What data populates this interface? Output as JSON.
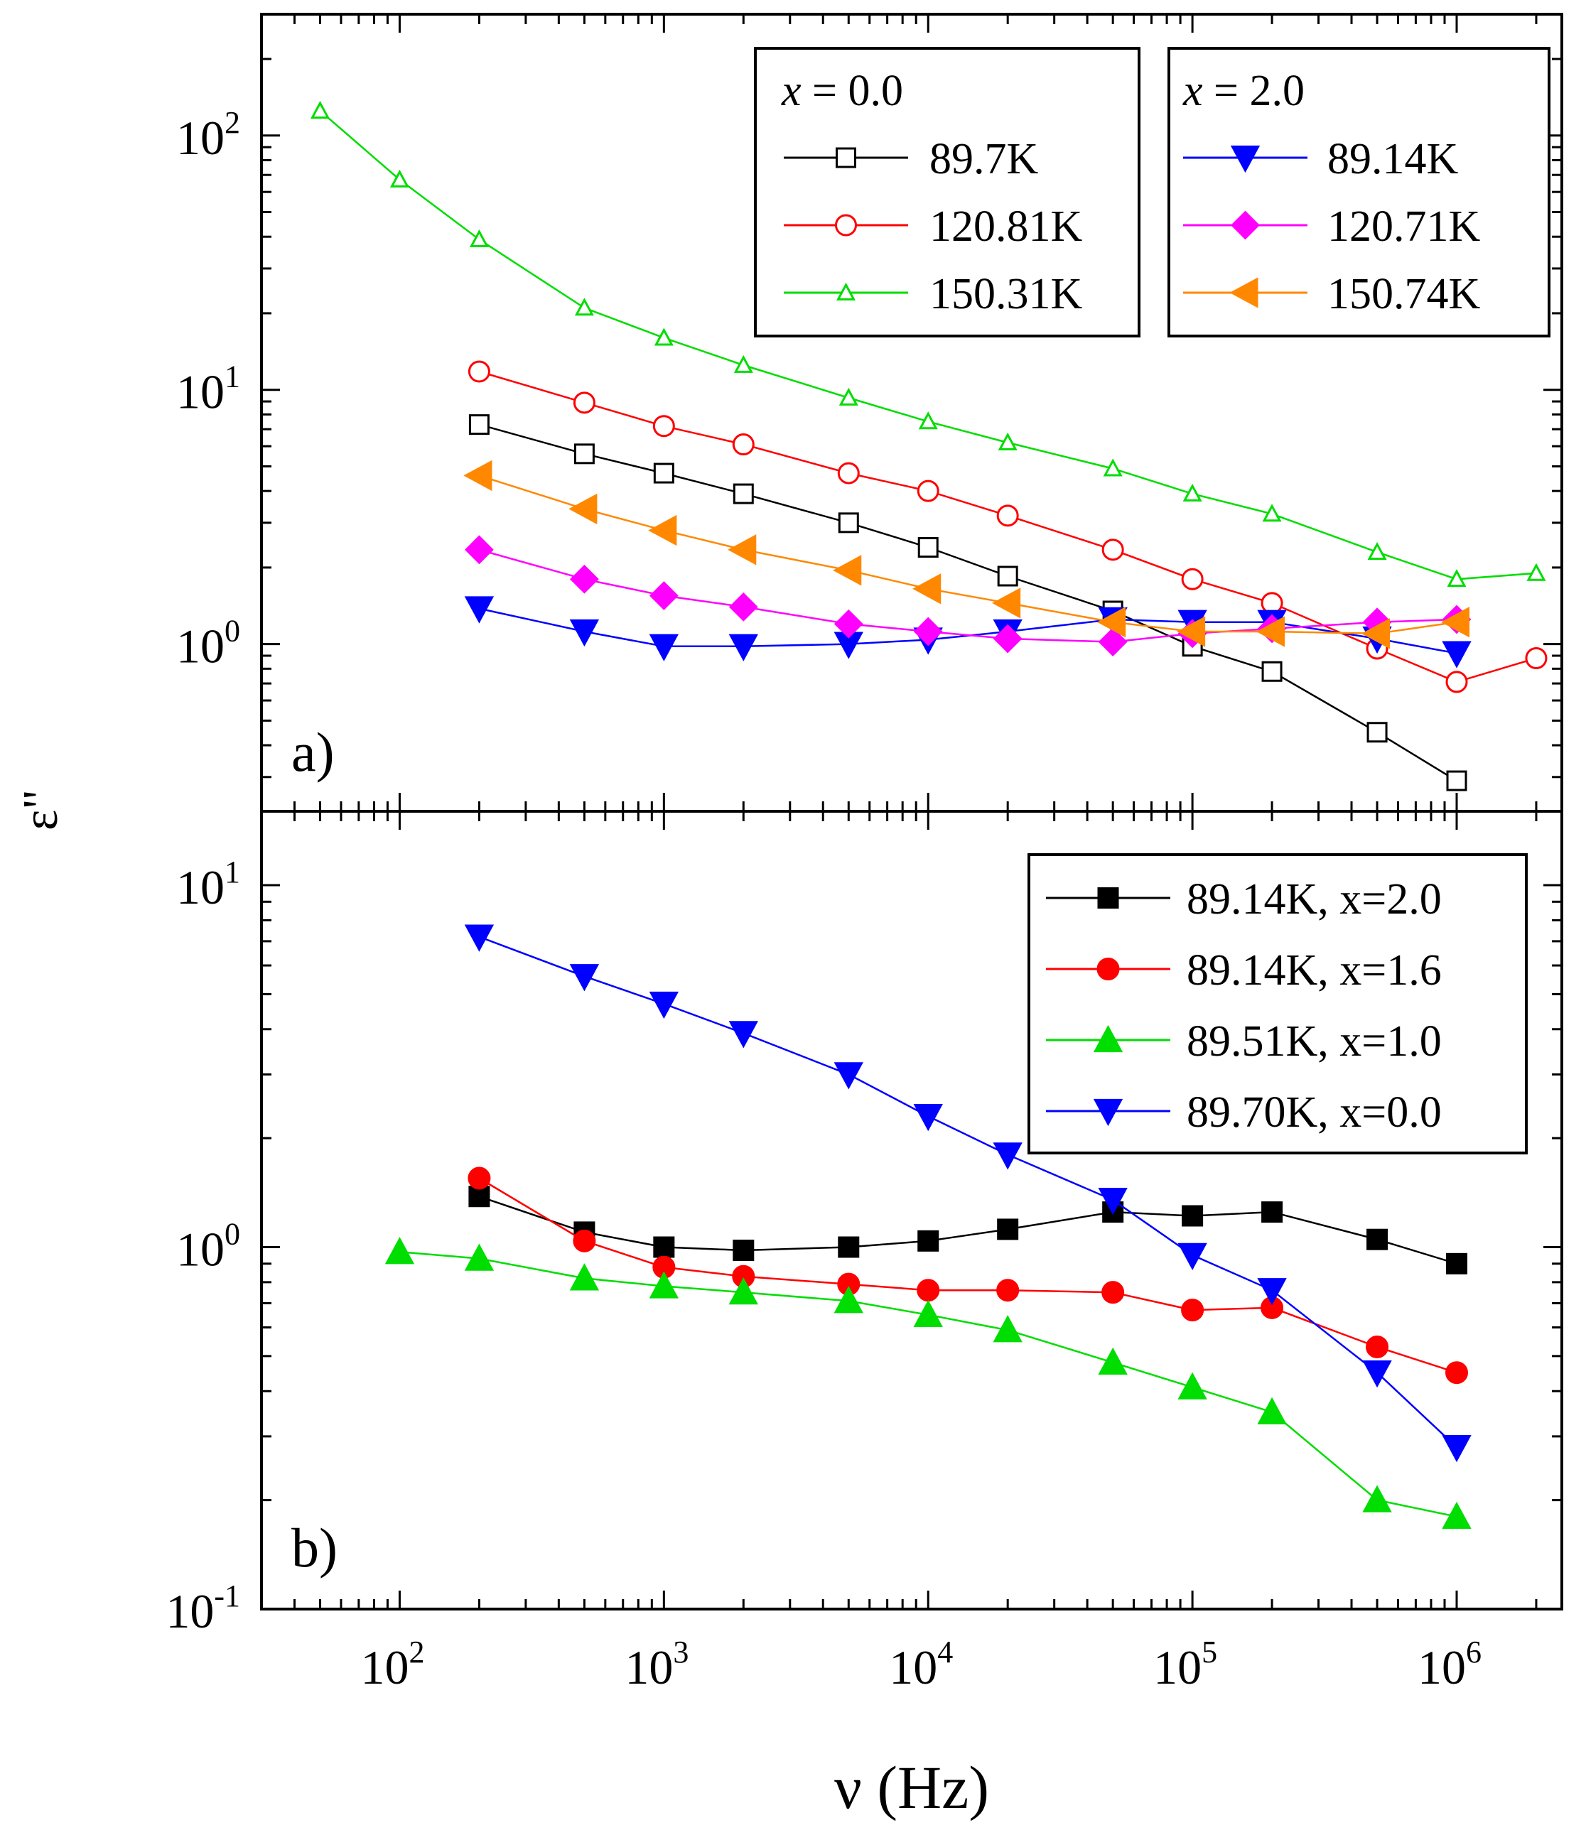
{
  "chart_data": [
    {
      "panel": "a",
      "panel_label": "a)",
      "type": "line",
      "x_scale": "log",
      "y_scale": "log",
      "xlim": [
        30,
        2500000
      ],
      "ylim": [
        0.22,
        300
      ],
      "ylabel": "ε\"",
      "y_ticks": [
        {
          "value": 1,
          "base": "10",
          "exp": "0"
        },
        {
          "value": 10,
          "base": "10",
          "exp": "1"
        },
        {
          "value": 100,
          "base": "10",
          "exp": "2"
        }
      ],
      "legends": [
        {
          "title_var": "x",
          "title_rest": " = 0.0",
          "entries": [
            "89.7K",
            "120.81K",
            "150.31K"
          ]
        },
        {
          "title_var": "x",
          "title_rest": " = 2.0",
          "entries": [
            "89.14K",
            "120.71K",
            "150.74K"
          ]
        }
      ],
      "series": [
        {
          "name": "89.7K",
          "color": "#000000",
          "marker": "square-open",
          "x": [
            200,
            500,
            1000,
            2000,
            5000,
            10000,
            20000,
            50000,
            100000,
            200000,
            500000,
            1000000
          ],
          "y": [
            7.3,
            5.6,
            4.7,
            3.9,
            3.0,
            2.4,
            1.85,
            1.35,
            0.98,
            0.78,
            0.45,
            0.29
          ]
        },
        {
          "name": "120.81K",
          "color": "#ff0000",
          "marker": "circle-open",
          "x": [
            200,
            500,
            1000,
            2000,
            5000,
            10000,
            20000,
            50000,
            100000,
            200000,
            500000,
            1000000,
            2000000
          ],
          "y": [
            11.8,
            8.9,
            7.2,
            6.1,
            4.7,
            4.0,
            3.2,
            2.35,
            1.8,
            1.45,
            0.96,
            0.71,
            0.88
          ]
        },
        {
          "name": "150.31K",
          "color": "#00dd00",
          "marker": "triangle-up-open",
          "x": [
            50,
            100,
            200,
            500,
            1000,
            2000,
            5000,
            10000,
            20000,
            50000,
            100000,
            200000,
            500000,
            1000000,
            2000000
          ],
          "y": [
            125,
            67,
            39,
            21,
            16,
            12.5,
            9.3,
            7.5,
            6.2,
            4.9,
            3.9,
            3.25,
            2.3,
            1.8,
            1.9
          ]
        },
        {
          "name": "89.14K",
          "color": "#0000ff",
          "marker": "triangle-down-filled",
          "x": [
            200,
            500,
            1000,
            2000,
            5000,
            10000,
            20000,
            50000,
            100000,
            200000,
            500000,
            1000000
          ],
          "y": [
            1.38,
            1.12,
            0.98,
            0.98,
            1.0,
            1.04,
            1.12,
            1.25,
            1.22,
            1.22,
            1.05,
            0.92
          ]
        },
        {
          "name": "120.71K",
          "color": "#ff00ff",
          "marker": "diamond-filled",
          "x": [
            200,
            500,
            1000,
            2000,
            5000,
            10000,
            20000,
            50000,
            100000,
            200000,
            500000,
            1000000
          ],
          "y": [
            2.35,
            1.8,
            1.55,
            1.4,
            1.2,
            1.12,
            1.05,
            1.02,
            1.1,
            1.15,
            1.22,
            1.25
          ]
        },
        {
          "name": "150.74K",
          "color": "#ff8800",
          "marker": "triangle-left-filled",
          "x": [
            200,
            500,
            1000,
            2000,
            5000,
            10000,
            20000,
            50000,
            100000,
            200000,
            500000,
            1000000
          ],
          "y": [
            4.6,
            3.4,
            2.8,
            2.35,
            1.95,
            1.65,
            1.45,
            1.22,
            1.12,
            1.12,
            1.1,
            1.22
          ]
        }
      ]
    },
    {
      "panel": "b",
      "panel_label": "b)",
      "type": "line",
      "x_scale": "log",
      "y_scale": "log",
      "xlim": [
        30,
        2500000
      ],
      "ylim": [
        0.1,
        16
      ],
      "xlabel": "ν (Hz)",
      "x_ticks": [
        {
          "value": 100,
          "base": "10",
          "exp": "2"
        },
        {
          "value": 1000,
          "base": "10",
          "exp": "3"
        },
        {
          "value": 10000,
          "base": "10",
          "exp": "4"
        },
        {
          "value": 100000,
          "base": "10",
          "exp": "5"
        },
        {
          "value": 1000000,
          "base": "10",
          "exp": "6"
        }
      ],
      "y_ticks": [
        {
          "value": 0.1,
          "base": "10",
          "exp": "-1"
        },
        {
          "value": 1,
          "base": "10",
          "exp": "0"
        },
        {
          "value": 10,
          "base": "10",
          "exp": "1"
        }
      ],
      "legends": [
        {
          "entries": [
            "89.14K, x=2.0",
            "89.14K, x=1.6",
            "89.51K, x=1.0",
            "89.70K, x=0.0"
          ]
        }
      ],
      "series": [
        {
          "name": "89.14K, x=2.0",
          "color": "#000000",
          "marker": "square-filled",
          "x": [
            200,
            500,
            1000,
            2000,
            5000,
            10000,
            20000,
            50000,
            100000,
            200000,
            500000,
            1000000
          ],
          "y": [
            1.38,
            1.1,
            1.0,
            0.98,
            1.0,
            1.04,
            1.12,
            1.25,
            1.22,
            1.25,
            1.05,
            0.9
          ]
        },
        {
          "name": "89.14K, x=1.6",
          "color": "#ff0000",
          "marker": "circle-filled",
          "x": [
            200,
            500,
            1000,
            2000,
            5000,
            10000,
            20000,
            50000,
            100000,
            200000,
            500000,
            1000000
          ],
          "y": [
            1.55,
            1.04,
            0.88,
            0.83,
            0.79,
            0.76,
            0.76,
            0.75,
            0.67,
            0.68,
            0.53,
            0.45
          ]
        },
        {
          "name": "89.51K, x=1.0",
          "color": "#00dd00",
          "marker": "triangle-up-filled",
          "x": [
            100,
            200,
            500,
            1000,
            2000,
            5000,
            10000,
            20000,
            50000,
            100000,
            200000,
            500000,
            1000000
          ],
          "y": [
            0.97,
            0.93,
            0.82,
            0.78,
            0.75,
            0.71,
            0.65,
            0.59,
            0.48,
            0.41,
            0.35,
            0.2,
            0.18
          ]
        },
        {
          "name": "89.70K, x=0.0",
          "color": "#0000ff",
          "marker": "triangle-down-filled",
          "x": [
            200,
            500,
            1000,
            2000,
            5000,
            10000,
            20000,
            50000,
            100000,
            200000,
            500000,
            1000000
          ],
          "y": [
            7.2,
            5.6,
            4.7,
            3.9,
            3.0,
            2.3,
            1.8,
            1.35,
            0.95,
            0.76,
            0.45,
            0.28
          ]
        }
      ]
    }
  ]
}
